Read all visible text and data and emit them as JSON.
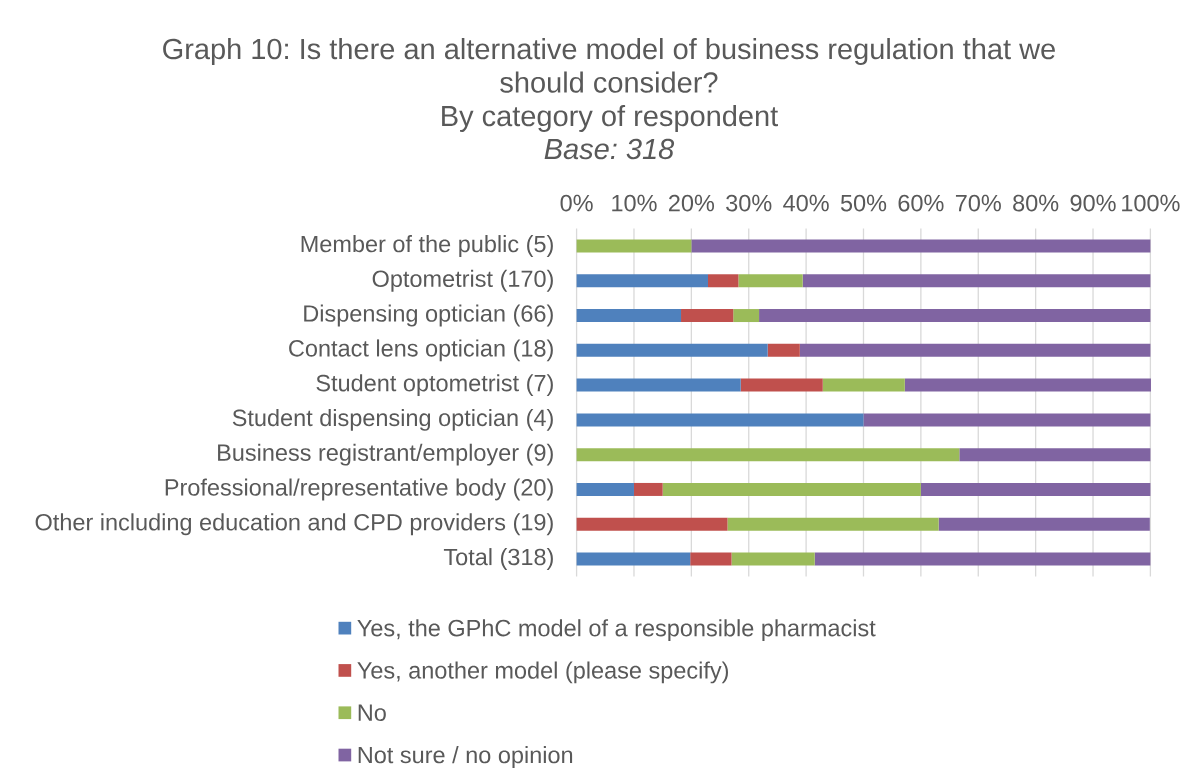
{
  "chart_data": {
    "type": "bar",
    "orientation": "horizontal",
    "stacked": true,
    "title": "Graph 10: Is there an alternative model of business regulation that we should consider?",
    "subtitle": "By category of respondent",
    "annotations": [
      "Base: 318"
    ],
    "categories": [
      "Member of the public (5)",
      "Optometrist (170)",
      "Dispensing optician (66)",
      "Contact lens optician (18)",
      "Student optometrist (7)",
      "Student dispensing optician (4)",
      "Business registrant/employer (9)",
      "Professional/representative body (20)",
      "Other including education and CPD providers (19)",
      "Total (318)"
    ],
    "series": [
      {
        "name": "Yes, the GPhC model of a responsible pharmacist",
        "color": "#4f81bd",
        "values": [
          0,
          22.9,
          18.2,
          33.3,
          28.6,
          50,
          0,
          10,
          0,
          19.8
        ]
      },
      {
        "name": "Yes, another model (please specify)",
        "color": "#c0504d",
        "values": [
          0,
          5.3,
          9.1,
          5.6,
          14.3,
          0,
          0,
          5,
          26.3,
          7.2
        ]
      },
      {
        "name": "No",
        "color": "#9bbb59",
        "values": [
          20,
          11.2,
          4.5,
          0,
          14.3,
          0,
          66.7,
          45,
          36.8,
          14.5
        ]
      },
      {
        "name": "Not sure / no opinion",
        "color": "#8064a2",
        "values": [
          80,
          60.6,
          68.2,
          61.1,
          42.9,
          50,
          33.3,
          40,
          36.8,
          58.5
        ]
      }
    ],
    "xlim": [
      0,
      100
    ],
    "xticks": [
      {
        "value": 0,
        "label": "0%"
      },
      {
        "value": 10,
        "label": "10%"
      },
      {
        "value": 20,
        "label": "20%"
      },
      {
        "value": 30,
        "label": "30%"
      },
      {
        "value": 40,
        "label": "40%"
      },
      {
        "value": 50,
        "label": "50%"
      },
      {
        "value": 60,
        "label": "60%"
      },
      {
        "value": 70,
        "label": "70%"
      },
      {
        "value": 80,
        "label": "80%"
      },
      {
        "value": 90,
        "label": "90%"
      },
      {
        "value": 100,
        "label": "100%"
      }
    ],
    "grid": "x",
    "legend": "bottom"
  }
}
